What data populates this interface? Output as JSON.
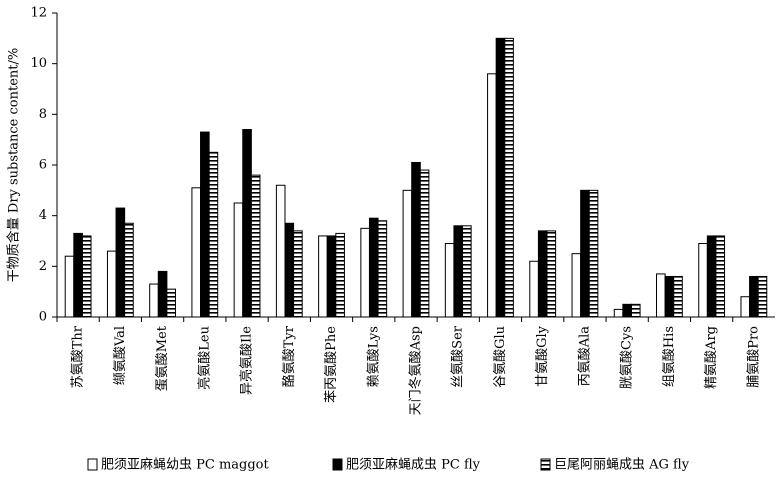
{
  "chart_data": {
    "type": "bar",
    "y_label": "干物质含量 Dry substance content/%",
    "categories": [
      "苏氨酸Thr",
      "缬氨酸Val",
      "蛋氨酸Met",
      "亮氨酸Leu",
      "异亮氨酸Ile",
      "酪氨酸Tyr",
      "苯丙氨酸Phe",
      "赖氨酸Lys",
      "天门冬氨酸Asp",
      "丝氨酸Ser",
      "谷氨酸Glu",
      "甘氨酸Gly",
      "丙氨酸Ala",
      "胱氨酸Cys",
      "组氨酸His",
      "精氨酸Arg",
      "脯氨酸Pro"
    ],
    "series": [
      {
        "name": "肥须亚麻蝇幼虫 PC maggot",
        "color": "#ffffff",
        "values": [
          2.4,
          2.6,
          1.3,
          5.1,
          4.5,
          5.2,
          3.2,
          3.5,
          5.0,
          2.9,
          9.6,
          2.2,
          2.5,
          0.3,
          1.7,
          2.9,
          0.8
        ]
      },
      {
        "name": "肥须亚麻蝇成虫 PC fly",
        "color": "#000000",
        "values": [
          3.3,
          4.3,
          1.8,
          7.3,
          7.4,
          3.7,
          3.2,
          3.9,
          6.1,
          3.6,
          11.0,
          3.4,
          5.0,
          0.5,
          1.6,
          3.2,
          1.6
        ]
      },
      {
        "name": "巨尾阿丽蝇成虫 AG fly",
        "color": "#000000",
        "pattern": "horizontal-stripes",
        "values": [
          3.2,
          3.7,
          1.1,
          6.5,
          5.6,
          3.4,
          3.3,
          3.8,
          5.8,
          3.6,
          11.0,
          3.4,
          5.0,
          0.5,
          1.6,
          3.2,
          1.6
        ]
      }
    ],
    "ylim": [
      0,
      12
    ],
    "yticks": [
      0,
      2,
      4,
      6,
      8,
      10,
      12
    ],
    "grid": false,
    "legend": "bottom"
  }
}
